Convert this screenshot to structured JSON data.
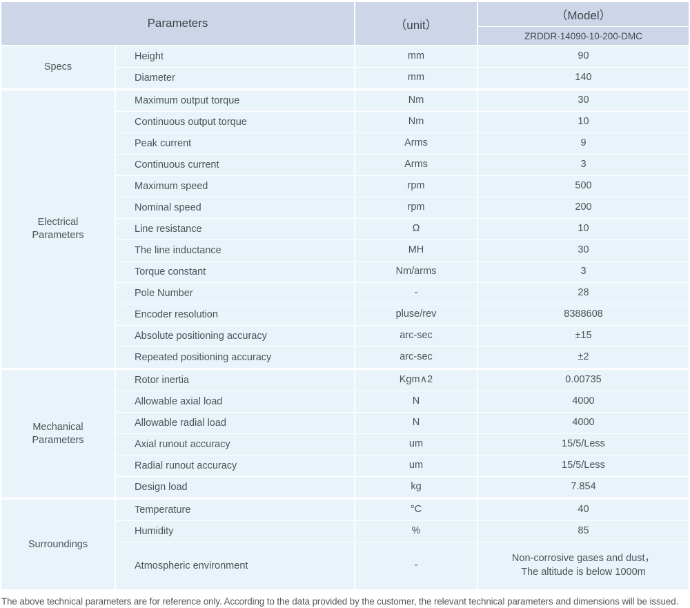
{
  "header": {
    "parameters_label": "Parameters",
    "unit_label": "（unit）",
    "model_label": "（Model）",
    "model_value": "ZRDDR-14090-10-200-DMC"
  },
  "sections": [
    {
      "category": "Specs",
      "rows": [
        {
          "param": "Height",
          "unit": "mm",
          "value": "90"
        },
        {
          "param": "Diameter",
          "unit": "mm",
          "value": "140"
        }
      ]
    },
    {
      "category": "Electrical Parameters",
      "rows": [
        {
          "param": "Maximum output torque",
          "unit": "Nm",
          "value": "30"
        },
        {
          "param": "Continuous output torque",
          "unit": "Nm",
          "value": "10"
        },
        {
          "param": "Peak current",
          "unit": "Arms",
          "value": "9"
        },
        {
          "param": "Continuous current",
          "unit": "Arms",
          "value": "3"
        },
        {
          "param": "Maximum speed",
          "unit": "rpm",
          "value": "500"
        },
        {
          "param": "Nominal speed",
          "unit": "rpm",
          "value": "200"
        },
        {
          "param": "Line resistance",
          "unit": "Ω",
          "value": "10"
        },
        {
          "param": "The line inductance",
          "unit": "MH",
          "value": "30"
        },
        {
          "param": "Torque constant",
          "unit": "Nm/arms",
          "value": "3"
        },
        {
          "param": "Pole Number",
          "unit": "-",
          "value": "28"
        },
        {
          "param": "Encoder resolution",
          "unit": "pluse/rev",
          "value": "8388608"
        },
        {
          "param": "Absolute positioning accuracy",
          "unit": "arc-sec",
          "value": "±15"
        },
        {
          "param": "Repeated positioning accuracy",
          "unit": "arc-sec",
          "value": "±2"
        }
      ]
    },
    {
      "category": "Mechanical Parameters",
      "rows": [
        {
          "param": "Rotor inertia",
          "unit": "Kgm∧2",
          "value": "0.00735"
        },
        {
          "param": "Allowable axial load",
          "unit": "N",
          "value": "4000"
        },
        {
          "param": "Allowable radial load",
          "unit": "N",
          "value": "4000"
        },
        {
          "param": "Axial runout accuracy",
          "unit": "um",
          "value": "15/5/Less"
        },
        {
          "param": "Radial runout accuracy",
          "unit": "um",
          "value": "15/5/Less"
        },
        {
          "param": "Design load",
          "unit": "kg",
          "value": "7.854"
        }
      ]
    },
    {
      "category": "Surroundings",
      "rows": [
        {
          "param": "Temperature",
          "unit": "°C",
          "value": "40"
        },
        {
          "param": "Humidity",
          "unit": "%",
          "value": "85"
        },
        {
          "param": "Atmospheric environment",
          "unit": "-",
          "value": "Non-corrosive gases and dust，\nThe altitude is below 1000m",
          "tall": true
        }
      ]
    }
  ],
  "footer": {
    "note": "The above technical parameters are for reference only. According to the data provided by the customer, the relevant technical parameters and dimensions will be issued."
  },
  "colors": {
    "header_bg": "#cdd5e9",
    "row_bg": "#e8f4fa",
    "text": "#4e5256"
  }
}
